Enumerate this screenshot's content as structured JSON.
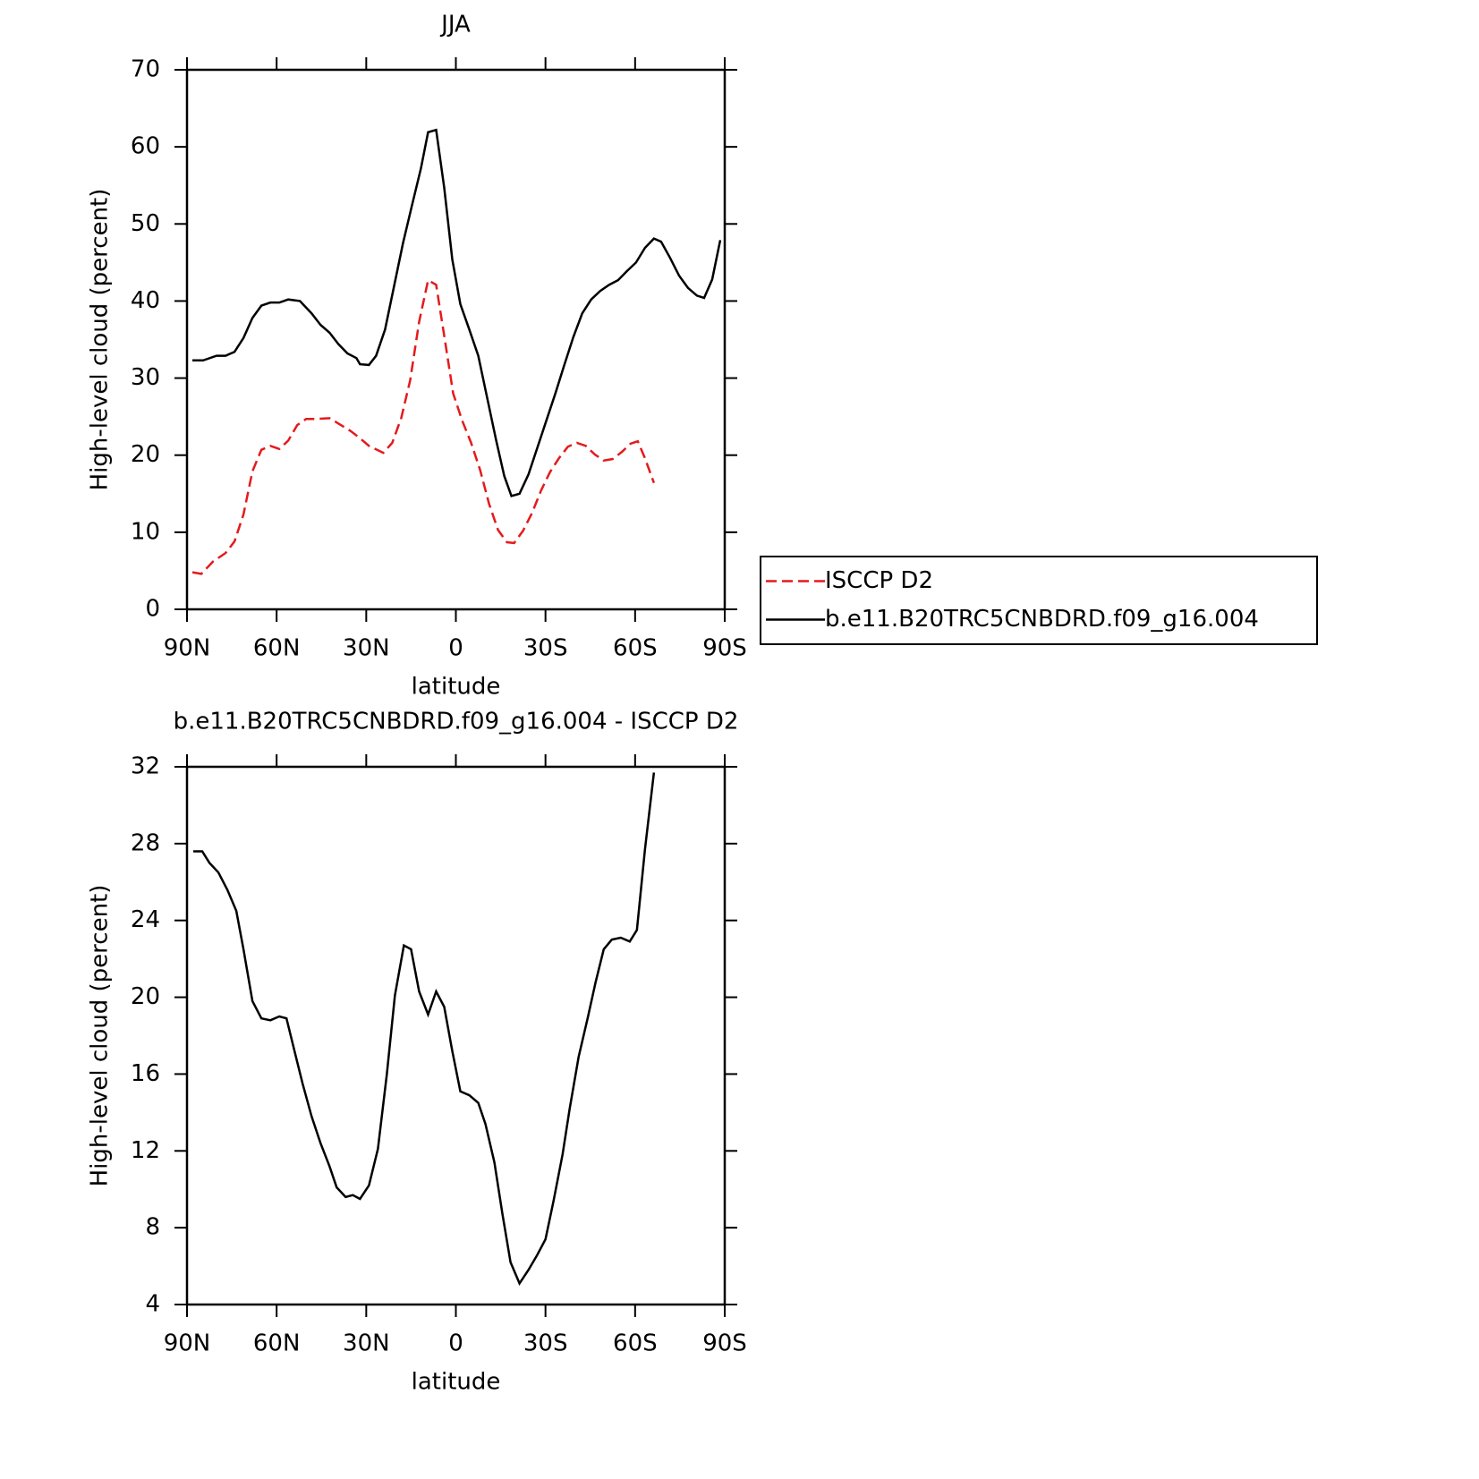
{
  "chart_data": [
    {
      "type": "line",
      "title": "JJA",
      "xlabel": "latitude",
      "ylabel": "High-level cloud (percent)",
      "xlim": [
        90,
        -90
      ],
      "xticks": [
        {
          "value": 90,
          "label": "90N"
        },
        {
          "value": 60,
          "label": "60N"
        },
        {
          "value": 30,
          "label": "30N"
        },
        0,
        {
          "value": -30,
          "label": "30S"
        },
        {
          "value": -60,
          "label": "60S"
        },
        {
          "value": -90,
          "label": "90S"
        }
      ],
      "ylim": [
        0,
        70
      ],
      "yticks": [
        0,
        10,
        20,
        30,
        40,
        50,
        60,
        70
      ],
      "legend": "right",
      "series": [
        {
          "name": "ISCCP D2",
          "color": "#e41a1c",
          "dashed": true,
          "x": [
            88.2,
            85.2,
            81.3,
            77.1,
            74.1,
            71.1,
            68.1,
            65.1,
            62.1,
            59.1,
            56.1,
            53.1,
            50.1,
            47.1,
            42.3,
            39.3,
            35.1,
            32.1,
            29.1,
            24.3,
            21.3,
            18.3,
            15.3,
            12.3,
            9.3,
            6.6,
            3.9,
            0.9,
            -2.1,
            -5.1,
            -8.1,
            -11.1,
            -14.1,
            -17.1,
            -19.5,
            -22.5,
            -25.5,
            -28.5,
            -31.5,
            -34.5,
            -37.5,
            -40.5,
            -43.5,
            -46.5,
            -49.5,
            -52.5,
            -55.5,
            -58.5,
            -60.9,
            -63.3,
            -66.3
          ],
          "values": [
            4.8,
            4.6,
            6.2,
            7.3,
            8.8,
            12.3,
            17.9,
            20.7,
            21.2,
            20.8,
            21.9,
            23.9,
            24.7,
            24.7,
            24.8,
            24.1,
            23.1,
            22.2,
            21.2,
            20.3,
            21.6,
            24.8,
            29.7,
            37.3,
            42.7,
            42.1,
            35.5,
            28.0,
            24.5,
            21.6,
            18.1,
            13.7,
            10.3,
            8.7,
            8.6,
            10.2,
            12.5,
            15.4,
            17.8,
            19.6,
            21.1,
            21.6,
            21.2,
            20.1,
            19.3,
            19.5,
            20.4,
            21.5,
            21.8,
            19.6,
            16.4
          ]
        },
        {
          "name": "b.e11.B20TRC5CNBDRD.f09_g16.004",
          "color": "#000000",
          "dashed": false,
          "x": [
            88.2,
            84.6,
            80.1,
            77.1,
            74.1,
            71.1,
            68.1,
            65.1,
            62.1,
            59.1,
            56.1,
            52.2,
            48.3,
            45.3,
            42.3,
            39.3,
            36.3,
            33.3,
            32.1,
            29.1,
            26.7,
            23.7,
            20.7,
            17.7,
            14.7,
            11.7,
            9.3,
            6.6,
            3.9,
            1.2,
            -1.5,
            -4.5,
            -7.5,
            -10.5,
            -13.5,
            -16.2,
            -18.6,
            -21.3,
            -24.3,
            -27.3,
            -30.3,
            -33.3,
            -36.3,
            -39.3,
            -42.3,
            -45.3,
            -48.3,
            -51.3,
            -54.3,
            -57.3,
            -60.3,
            -63.3,
            -66.3,
            -68.7,
            -71.7,
            -74.7,
            -77.7,
            -80.7,
            -83.1,
            -85.8,
            -88.5
          ],
          "values": [
            32.3,
            32.3,
            32.9,
            32.9,
            33.4,
            35.2,
            37.8,
            39.4,
            39.8,
            39.8,
            40.2,
            40.0,
            38.4,
            36.9,
            35.9,
            34.4,
            33.2,
            32.6,
            31.8,
            31.7,
            32.9,
            36.3,
            41.9,
            47.5,
            52.4,
            57.2,
            61.9,
            62.2,
            54.7,
            45.4,
            39.6,
            36.3,
            32.9,
            27.4,
            21.9,
            17.3,
            14.7,
            15.0,
            17.5,
            21.0,
            24.5,
            28.0,
            31.7,
            35.3,
            38.4,
            40.2,
            41.3,
            42.1,
            42.7,
            43.9,
            45.0,
            46.9,
            48.1,
            47.7,
            45.6,
            43.3,
            41.7,
            40.7,
            40.4,
            42.8,
            47.9
          ]
        }
      ]
    },
    {
      "type": "line",
      "title": "b.e11.B20TRC5CNBDRD.f09_g16.004 - ISCCP D2",
      "xlabel": "latitude",
      "ylabel": "High-level cloud (percent)",
      "xlim": [
        90,
        -90
      ],
      "xticks": [
        {
          "value": 90,
          "label": "90N"
        },
        {
          "value": 60,
          "label": "60N"
        },
        {
          "value": 30,
          "label": "30N"
        },
        0,
        {
          "value": -30,
          "label": "30S"
        },
        {
          "value": -60,
          "label": "60S"
        },
        {
          "value": -90,
          "label": "90S"
        }
      ],
      "ylim": [
        4,
        32
      ],
      "yticks": [
        4,
        8,
        12,
        16,
        20,
        24,
        28,
        32
      ],
      "series": [
        {
          "color": "#000000",
          "dashed": false,
          "x": [
            87.9,
            84.9,
            82.5,
            79.5,
            76.5,
            73.5,
            71.1,
            68.1,
            65.1,
            62.1,
            59.1,
            56.7,
            53.7,
            51.3,
            48.3,
            45.3,
            42.3,
            39.9,
            36.9,
            34.5,
            32.1,
            29.1,
            26.1,
            23.1,
            20.4,
            17.4,
            15.0,
            12.3,
            9.3,
            6.6,
            3.9,
            1.2,
            -1.5,
            -4.5,
            -7.5,
            -9.9,
            -12.9,
            -15.6,
            -18.3,
            -21.3,
            -24.3,
            -27.3,
            -30.0,
            -32.7,
            -35.7,
            -38.1,
            -41.1,
            -44.1,
            -46.8,
            -49.5,
            -52.2,
            -55.2,
            -58.2,
            -60.6,
            -63.3,
            -66.3
          ],
          "values": [
            27.6,
            27.6,
            27.0,
            26.5,
            25.6,
            24.5,
            22.5,
            19.8,
            18.9,
            18.8,
            19.0,
            18.9,
            17.0,
            15.5,
            13.8,
            12.4,
            11.2,
            10.1,
            9.6,
            9.7,
            9.5,
            10.2,
            12.1,
            16.0,
            20.1,
            22.7,
            22.5,
            20.3,
            19.1,
            20.3,
            19.5,
            17.2,
            15.1,
            14.9,
            14.5,
            13.4,
            11.4,
            8.7,
            6.2,
            5.1,
            5.8,
            6.6,
            7.4,
            9.4,
            11.8,
            14.2,
            16.9,
            18.9,
            20.8,
            22.5,
            23.0,
            23.1,
            22.9,
            23.5,
            27.7,
            31.7
          ]
        }
      ]
    }
  ]
}
